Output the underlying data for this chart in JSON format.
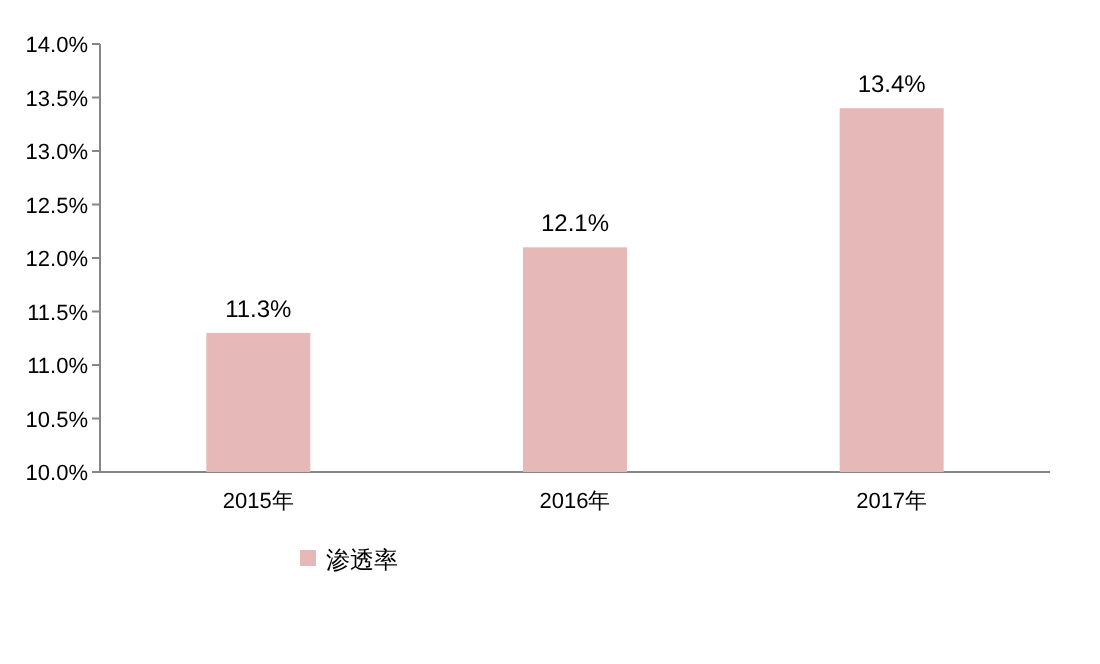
{
  "chart_data": {
    "type": "bar",
    "categories": [
      "2015年",
      "2016年",
      "2017年"
    ],
    "series": [
      {
        "name": "渗透率",
        "color": "#e6b9b8",
        "values": [
          11.3,
          12.1,
          13.4
        ],
        "value_labels": [
          "11.3%",
          "12.1%",
          "13.4%"
        ]
      }
    ],
    "ylim": [
      10,
      14
    ],
    "yticks": [
      {
        "value": 10,
        "label": "10.0%"
      },
      {
        "value": 10.5,
        "label": "10.5%"
      },
      {
        "value": 11,
        "label": "11.0%"
      },
      {
        "value": 11.5,
        "label": "11.5%"
      },
      {
        "value": 12,
        "label": "12.0%"
      },
      {
        "value": 12.5,
        "label": "12.5%"
      },
      {
        "value": 13,
        "label": "13.0%"
      },
      {
        "value": 13.5,
        "label": "13.5%"
      },
      {
        "value": 14,
        "label": "14.0%"
      }
    ],
    "grid": false,
    "legend": "bottom left"
  }
}
